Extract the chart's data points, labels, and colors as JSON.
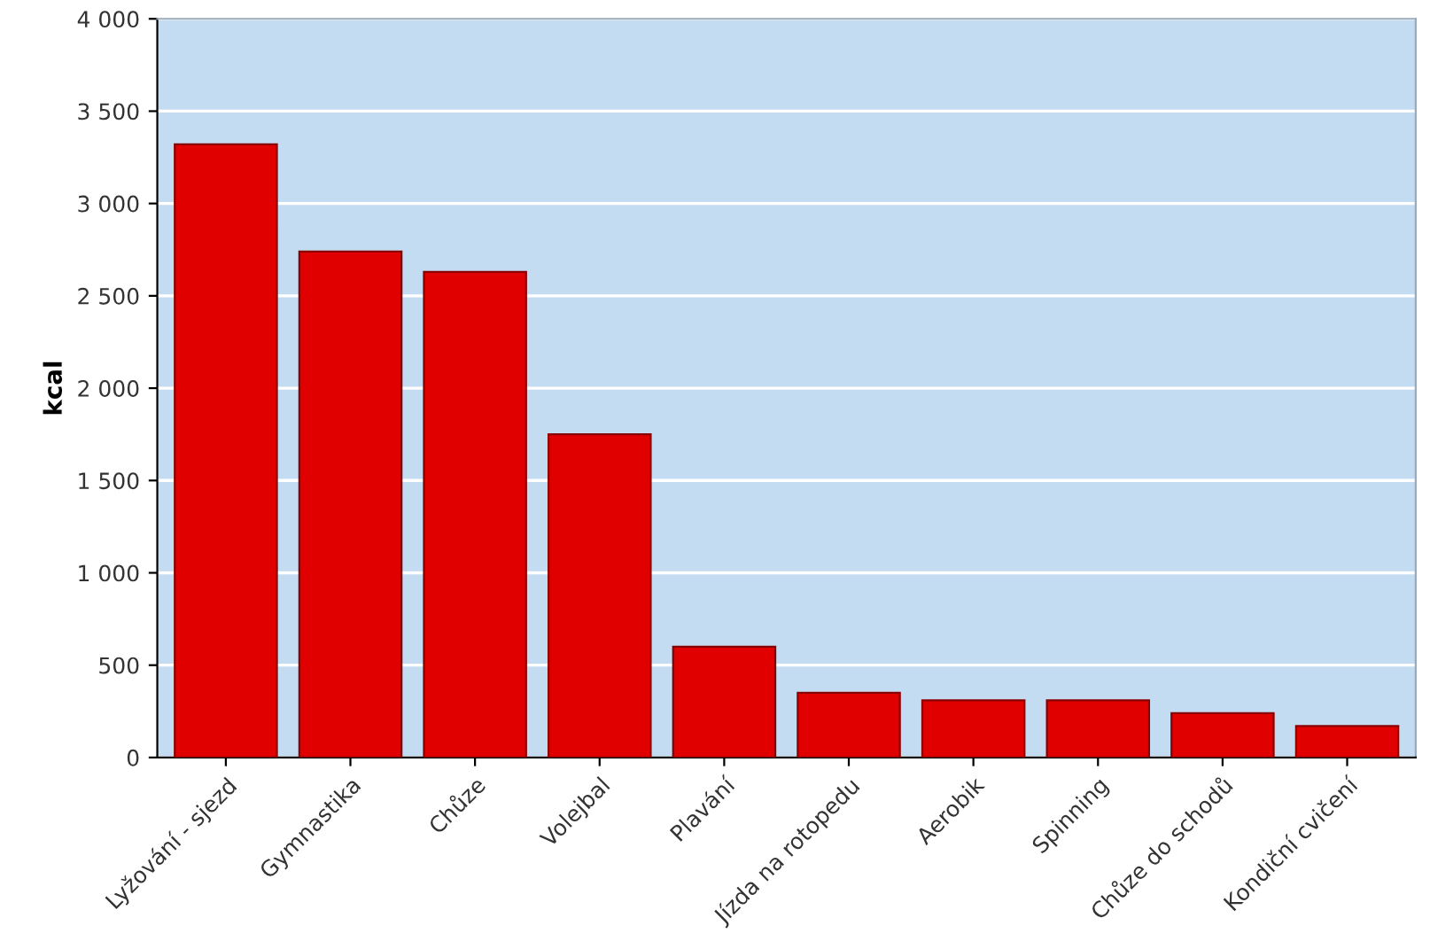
{
  "chart_data": {
    "type": "bar",
    "ylabel": "kcal",
    "categories": [
      "Lyžování - sjezd",
      "Gymnastika",
      "Chůze",
      "Volejbal",
      "Plavání",
      "Jízda na rotopedu",
      "Aerobik",
      "Spinning",
      "Chůze do schodů",
      "Kondiční cvičení"
    ],
    "values": [
      3320,
      2740,
      2630,
      1750,
      600,
      350,
      310,
      310,
      240,
      170
    ],
    "color": "#e00000",
    "ylim": [
      0,
      4000
    ],
    "yticks": [
      0,
      500,
      {
        "value": 1000,
        "label": "1 000"
      },
      {
        "value": 1500,
        "label": "1 500"
      },
      {
        "value": 2000,
        "label": "2 000"
      },
      {
        "value": 2500,
        "label": "2 500"
      },
      {
        "value": 3000,
        "label": "3 000"
      },
      {
        "value": 3500,
        "label": "3 500"
      },
      {
        "value": 4000,
        "label": "4 000"
      }
    ],
    "grid": "y"
  }
}
